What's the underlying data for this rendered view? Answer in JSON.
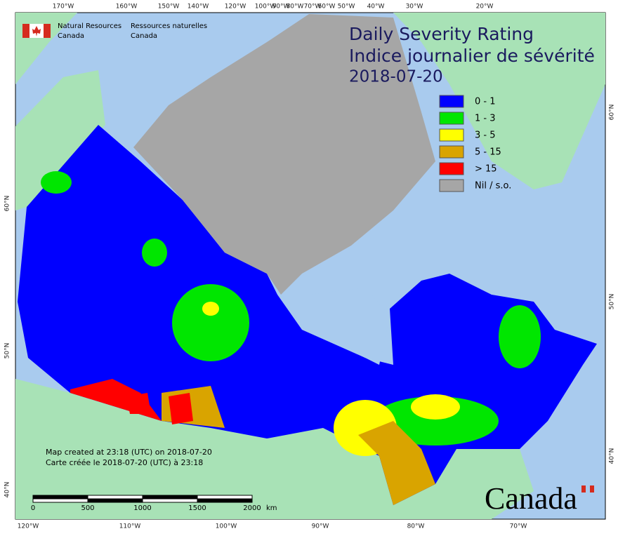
{
  "header": {
    "agency_en": [
      "Natural Resources",
      "Canada"
    ],
    "agency_fr": [
      "Ressources naturelles",
      "Canada"
    ]
  },
  "title": {
    "en": "Daily Severity Rating",
    "fr": "Indice journalier de sévérité",
    "date": "2018-07-20"
  },
  "legend": [
    {
      "label": "0 - 1",
      "color": "#0000ff"
    },
    {
      "label": "1 - 3",
      "color": "#00e600"
    },
    {
      "label": "3 - 5",
      "color": "#ffff00"
    },
    {
      "label": "5 - 15",
      "color": "#d9a400"
    },
    {
      "label": "> 15",
      "color": "#ff0000"
    },
    {
      "label": "Nil / s.o.",
      "color": "#a6a6a6"
    }
  ],
  "top_labels": [
    "170°W",
    "160°W",
    "150°W",
    "140°W",
    "120°W",
    "100°W",
    "90°W",
    "80°W",
    "70°W",
    "60°W",
    "50°W",
    "40°W",
    "30°W",
    "20°W"
  ],
  "bottom_labels": [
    "120°W",
    "110°W",
    "100°W",
    "90°W",
    "80°W",
    "70°W"
  ],
  "left_labels": [
    "60°N",
    "50°N",
    "40°N"
  ],
  "right_labels": [
    "60°N",
    "50°N",
    "40°N"
  ],
  "notes": [
    "Map created at 23:18 (UTC) on 2018-07-20",
    "Carte créée le 2018-07-20 (UTC) à 23:18"
  ],
  "scale_bar": {
    "ticks": [
      "0",
      "500",
      "1000",
      "1500",
      "2000"
    ],
    "unit": "km"
  },
  "wordmark": "Canada"
}
